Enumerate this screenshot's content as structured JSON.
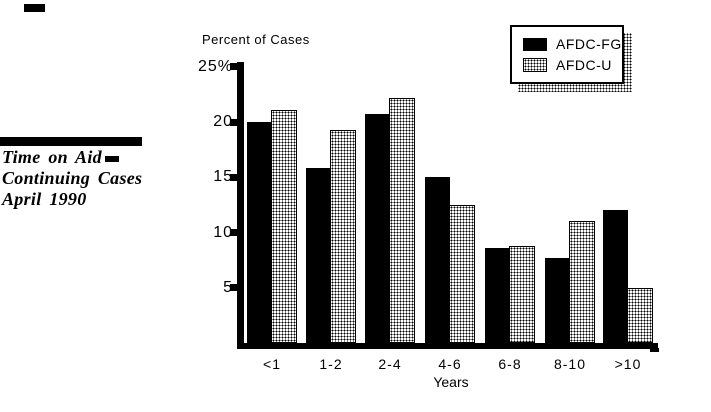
{
  "figure": {
    "title_line1": "Time on Aid",
    "title_line2": "Continuing Cases",
    "title_line3": "April 1990"
  },
  "colors": {
    "foreground": "#000000",
    "background": "#ffffff",
    "afdc_fg_fill": "#000000",
    "afdc_u_fill": "stippled-dot-pattern"
  },
  "chart_data": {
    "type": "bar",
    "title": "Time on Aid - Continuing Cases, April 1990",
    "ylabel": "Percent of Cases",
    "xlabel": "Years",
    "categories": [
      "<1",
      "1-2",
      "2-4",
      "4-6",
      "6-8",
      "8-10",
      ">10"
    ],
    "series": [
      {
        "name": "AFDC-FG",
        "style": "solid-black",
        "values": [
          20,
          15.8,
          20.7,
          15,
          8.6,
          7.7,
          12
        ]
      },
      {
        "name": "AFDC-U",
        "style": "stippled",
        "values": [
          21.1,
          19.3,
          22.2,
          12.5,
          8.8,
          11,
          5
        ]
      }
    ],
    "y_ticks": [
      {
        "value": 5,
        "label": "5"
      },
      {
        "value": 10,
        "label": "10"
      },
      {
        "value": 15,
        "label": "15"
      },
      {
        "value": 20,
        "label": "20"
      },
      {
        "value": 25,
        "label": "25%"
      }
    ],
    "ylim": [
      0,
      25
    ],
    "grid": false,
    "legend_position": "top-right"
  }
}
